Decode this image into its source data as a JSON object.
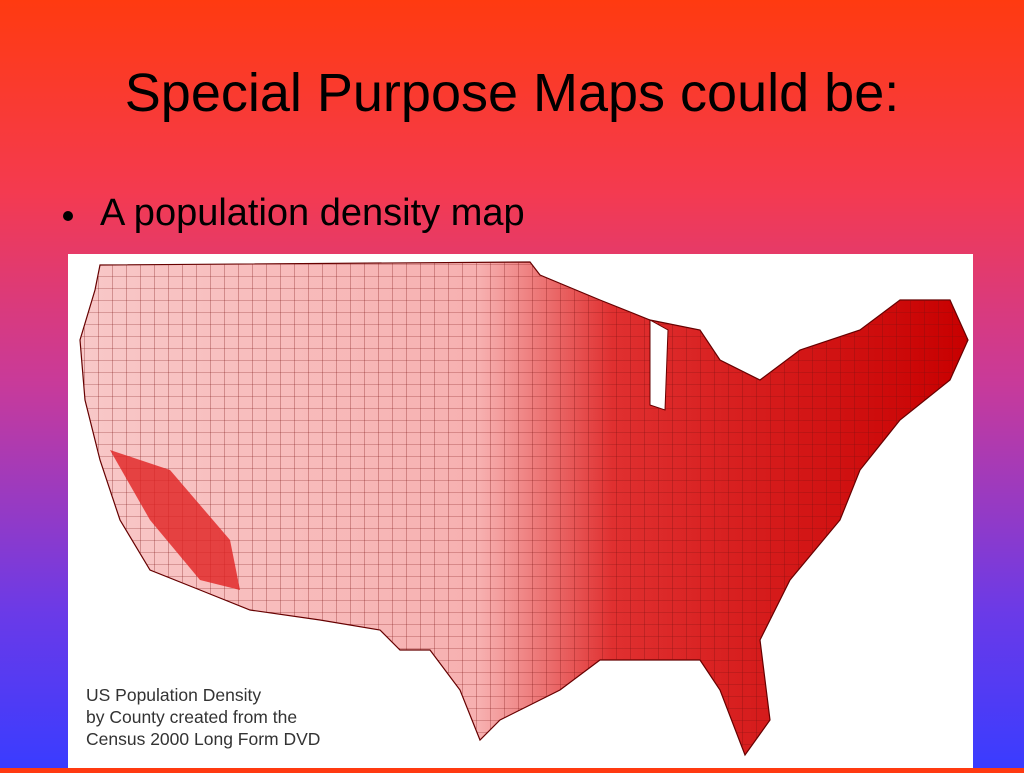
{
  "slide": {
    "title": "Special Purpose Maps could be:",
    "bullets": [
      "A population density map"
    ],
    "map": {
      "caption": [
        "US Population Density",
        "by County created from the",
        "Census 2000 Long Form DVD"
      ]
    }
  }
}
